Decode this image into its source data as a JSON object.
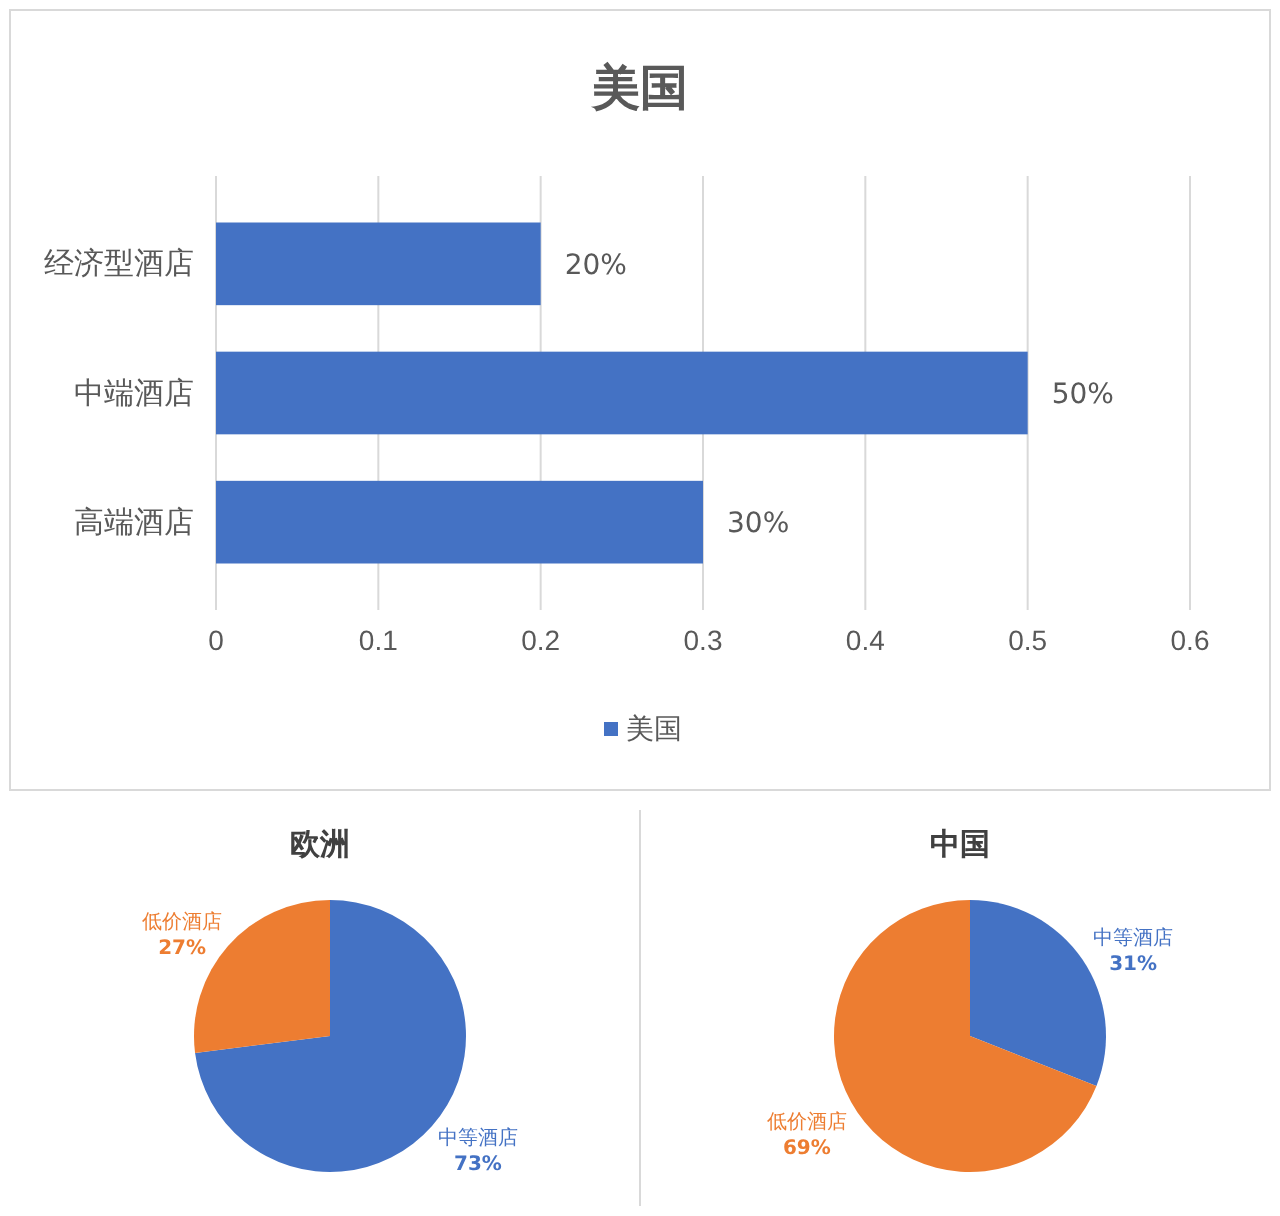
{
  "chart_data": [
    {
      "type": "bar",
      "title": "美国",
      "orientation": "horizontal",
      "categories": [
        "经济型酒店",
        "中端酒店",
        "高端酒店"
      ],
      "series": [
        {
          "name": "美国",
          "color": "#4472c4",
          "values": [
            0.2,
            0.5,
            0.3
          ],
          "value_labels": [
            "20%",
            "50%",
            "30%"
          ]
        }
      ],
      "xlim": [
        0,
        0.6
      ],
      "xticks": [
        0,
        0.1,
        0.2,
        0.3,
        0.4,
        0.5,
        0.6
      ],
      "grid": "x",
      "legend": "bottom"
    },
    {
      "type": "pie",
      "title": "欧洲",
      "categories": [
        "中等酒店",
        "低价酒店"
      ],
      "values": [
        73,
        27
      ],
      "colors": [
        "#4472c4",
        "#ed7d31"
      ],
      "value_labels": [
        "73%",
        "27%"
      ]
    },
    {
      "type": "pie",
      "title": "中国",
      "categories": [
        "中等酒店",
        "低价酒店"
      ],
      "values": [
        31,
        69
      ],
      "colors": [
        "#4472c4",
        "#ed7d31"
      ],
      "value_labels": [
        "31%",
        "69%"
      ]
    }
  ]
}
